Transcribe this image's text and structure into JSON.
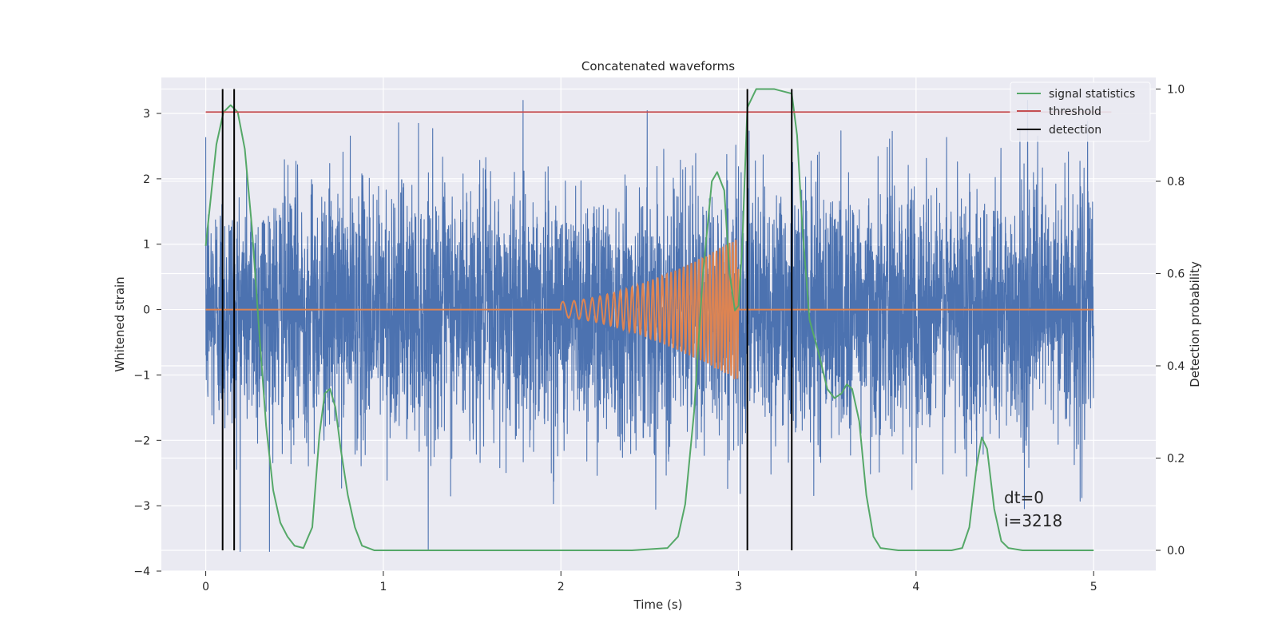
{
  "chart_data": {
    "type": "line",
    "title": "Concatenated waveforms",
    "xlabel": "Time (s)",
    "ylabel": "Whitened strain",
    "y2label": "Detection probability",
    "xlim": [
      -0.25,
      5.35
    ],
    "ylim": [
      -4.0,
      3.55
    ],
    "y2lim": [
      -0.045,
      1.025
    ],
    "x_ticks": [
      0,
      1,
      2,
      3,
      4,
      5
    ],
    "y_ticks": [
      -4,
      -3,
      -2,
      -1,
      0,
      1,
      2,
      3
    ],
    "y2_ticks": [
      0.0,
      0.2,
      0.4,
      0.6,
      0.8,
      1.0
    ],
    "x_tick_labels": [
      "0",
      "1",
      "2",
      "3",
      "4",
      "5"
    ],
    "y_tick_labels": [
      "−4",
      "−3",
      "−2",
      "−1",
      "0",
      "1",
      "2",
      "3"
    ],
    "y2_tick_labels": [
      "0.0",
      "0.2",
      "0.4",
      "0.6",
      "0.8",
      "1.0"
    ],
    "grid": true,
    "legend_position": "top-right",
    "colors": {
      "strain": "#4c72b0",
      "template": "#dd8452",
      "signal_statistics": "#55a868",
      "threshold": "#c44e52",
      "detection": "#000000",
      "background": "#eaeaf2",
      "grid": "#ffffff"
    },
    "series": [
      {
        "name": "signal statistics",
        "axis": "right",
        "x": [
          0.0,
          0.03,
          0.06,
          0.1,
          0.14,
          0.18,
          0.22,
          0.26,
          0.3,
          0.34,
          0.38,
          0.42,
          0.46,
          0.5,
          0.55,
          0.6,
          0.64,
          0.67,
          0.7,
          0.73,
          0.76,
          0.8,
          0.84,
          0.88,
          0.95,
          1.2,
          1.6,
          2.0,
          2.4,
          2.6,
          2.66,
          2.7,
          2.75,
          2.8,
          2.85,
          2.88,
          2.92,
          2.95,
          2.98,
          3.0,
          3.02,
          3.05,
          3.1,
          3.2,
          3.3,
          3.33,
          3.36,
          3.4,
          3.45,
          3.5,
          3.54,
          3.58,
          3.61,
          3.64,
          3.68,
          3.72,
          3.76,
          3.8,
          3.9,
          4.0,
          4.2,
          4.26,
          4.3,
          4.34,
          4.37,
          4.4,
          4.44,
          4.48,
          4.52,
          4.6,
          5.0
        ],
        "values": [
          0.66,
          0.77,
          0.88,
          0.95,
          0.965,
          0.95,
          0.87,
          0.7,
          0.48,
          0.27,
          0.13,
          0.06,
          0.03,
          0.01,
          0.005,
          0.05,
          0.25,
          0.34,
          0.35,
          0.31,
          0.22,
          0.12,
          0.05,
          0.01,
          0.0,
          0.0,
          0.0,
          0.0,
          0.0,
          0.005,
          0.03,
          0.1,
          0.3,
          0.6,
          0.8,
          0.82,
          0.78,
          0.6,
          0.52,
          0.53,
          0.65,
          0.96,
          1.0,
          1.0,
          0.99,
          0.9,
          0.7,
          0.5,
          0.43,
          0.35,
          0.33,
          0.34,
          0.36,
          0.35,
          0.28,
          0.12,
          0.03,
          0.005,
          0.0,
          0.0,
          0.0,
          0.005,
          0.05,
          0.18,
          0.245,
          0.22,
          0.09,
          0.02,
          0.005,
          0.0,
          0.0
        ]
      },
      {
        "name": "threshold",
        "axis": "right",
        "x": [
          0.0,
          5.1
        ],
        "values": [
          0.95,
          0.95
        ]
      },
      {
        "name": "detection",
        "axis": "right",
        "x": [
          0.095,
          0.16,
          3.05,
          3.3
        ],
        "y_range": [
          0.0,
          1.0
        ]
      }
    ],
    "strain_noise": {
      "axis": "left",
      "x_range": [
        0.0,
        5.0
      ],
      "typical_range": [
        -2.7,
        2.7
      ],
      "extremes": [
        -3.7,
        3.2
      ]
    },
    "template_waveform": {
      "axis": "left",
      "x_range": [
        0.0,
        5.0
      ],
      "chirp_x_range": [
        2.0,
        3.0
      ],
      "chirp_peak_amplitude": 1.1
    },
    "annotations": [
      "dt=0",
      "i=3218"
    ],
    "annotation_position": {
      "x": 4.5,
      "y": -3.0
    }
  }
}
